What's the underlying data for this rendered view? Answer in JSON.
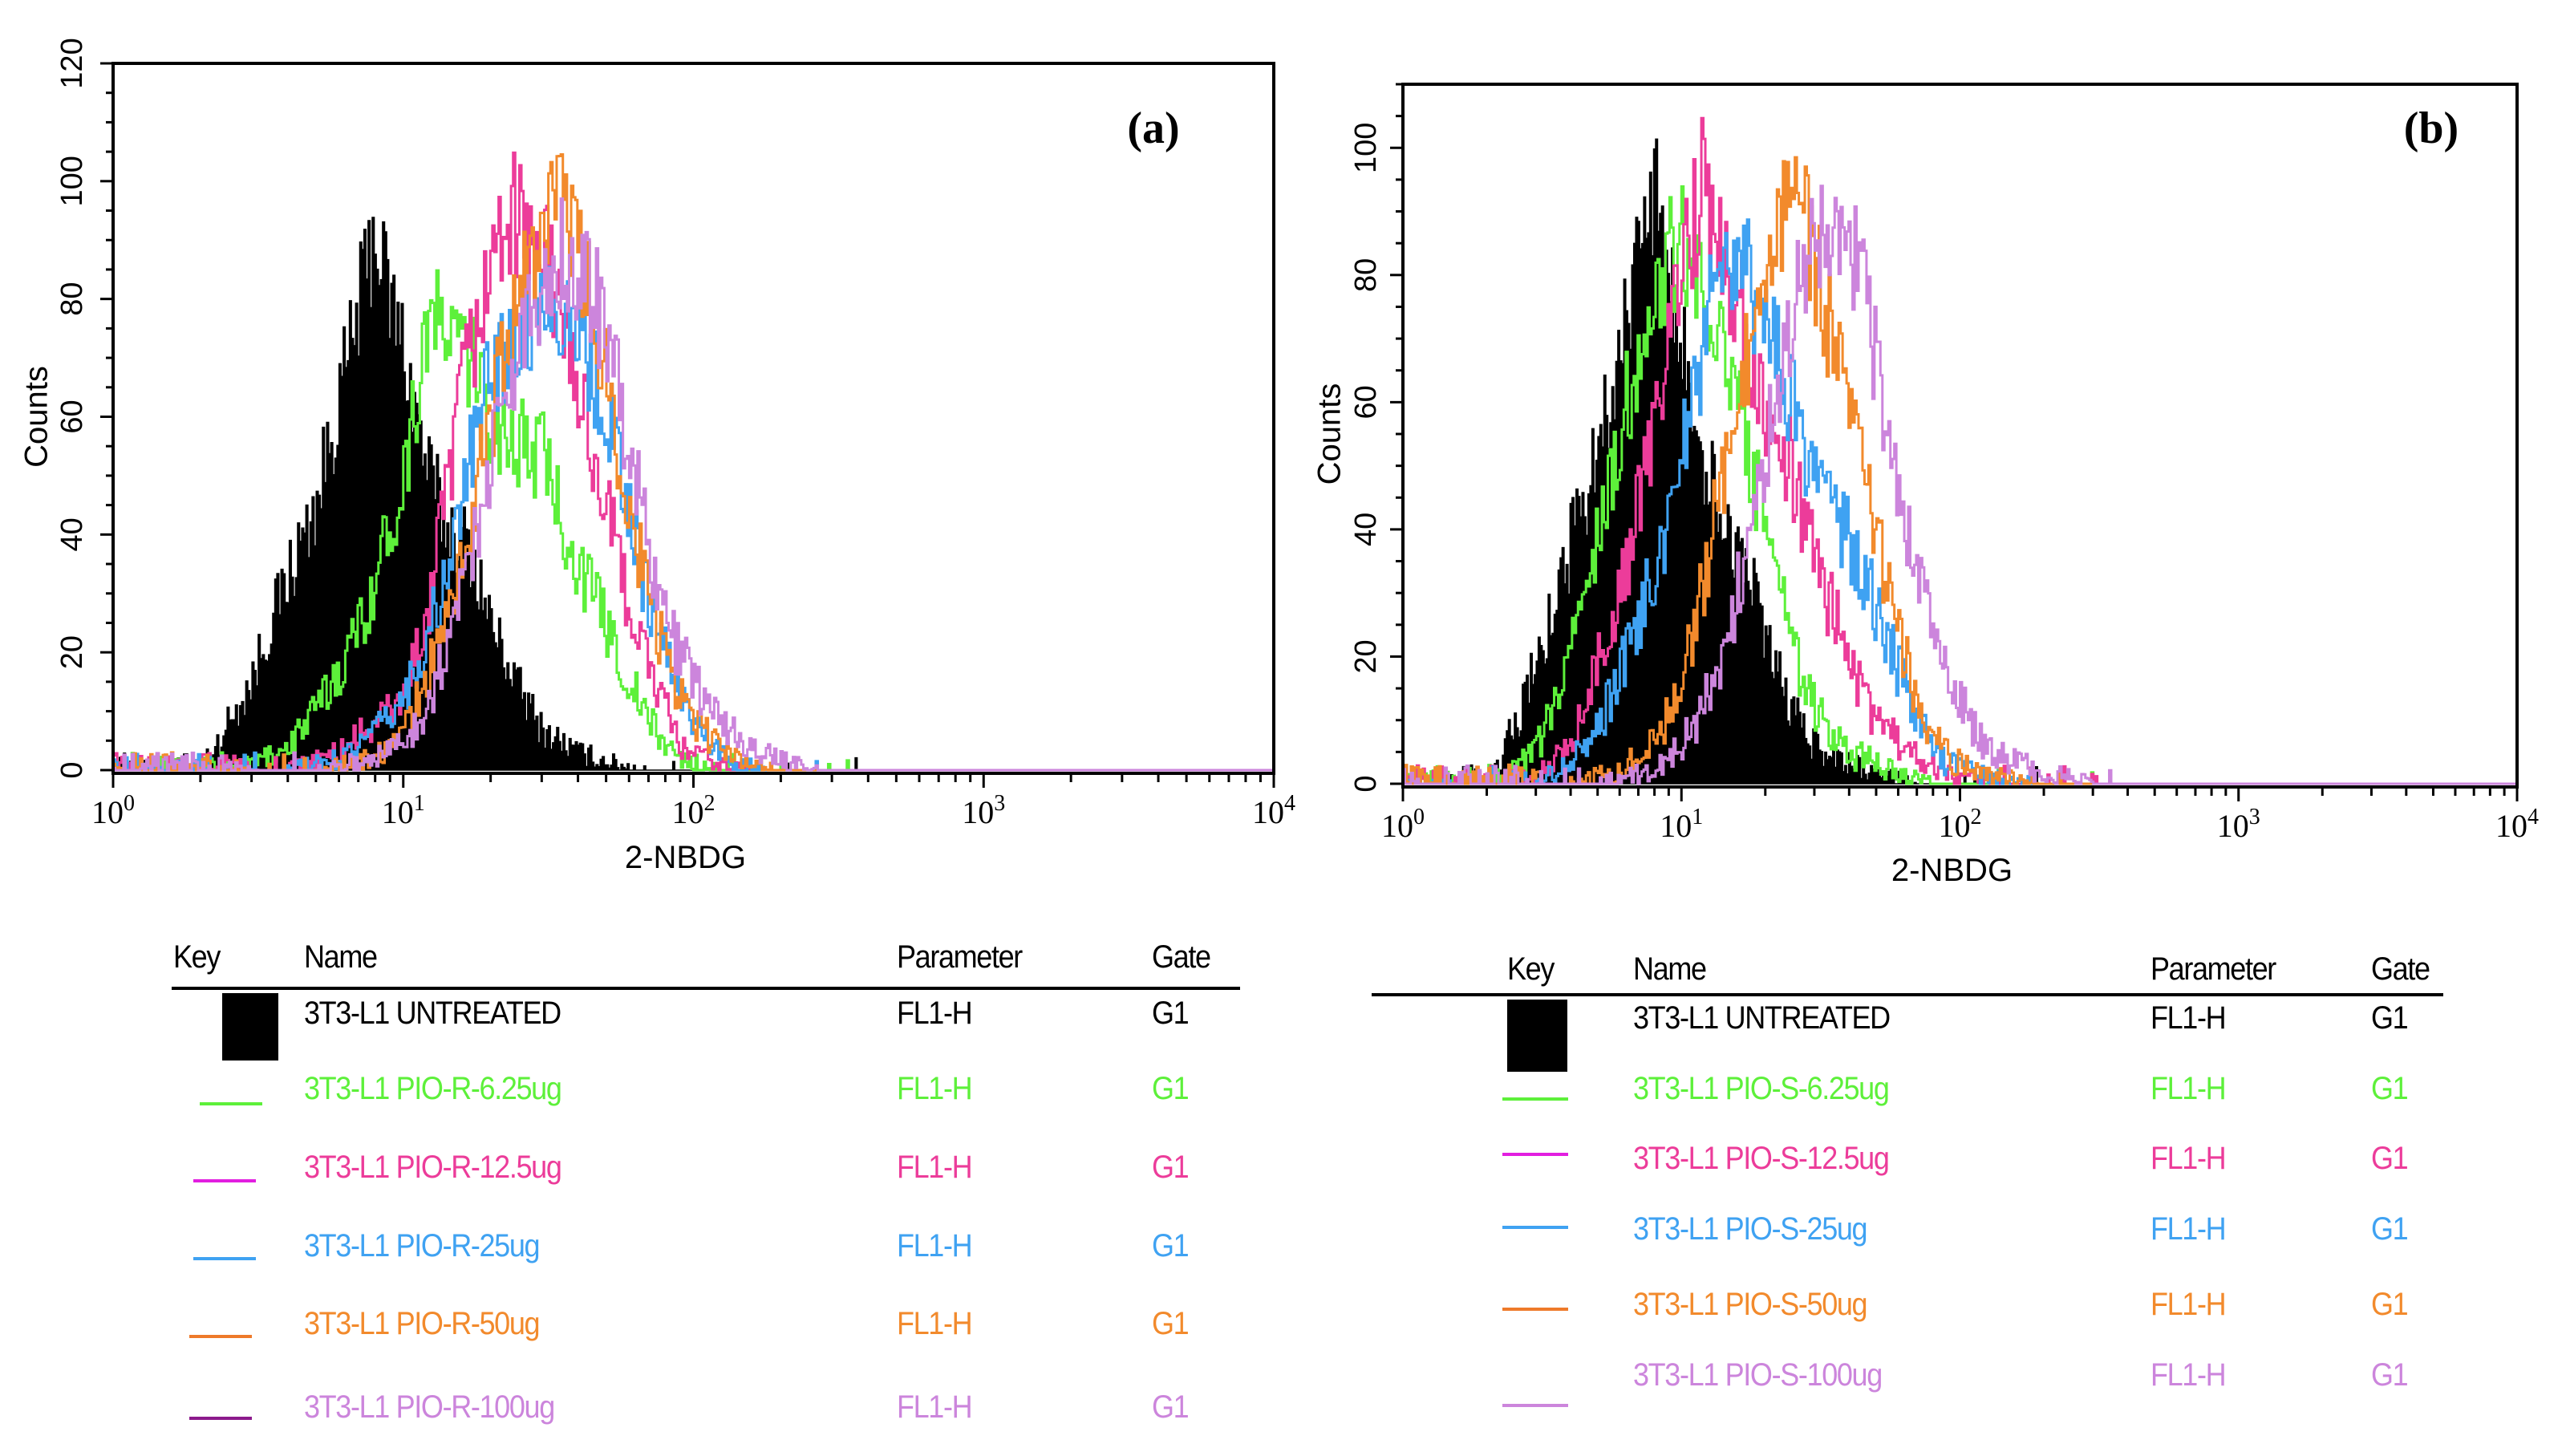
{
  "chart_data": [
    {
      "type": "line",
      "panel_label": "(a)",
      "xlabel": "2-NBDG",
      "ylabel": "Counts",
      "xscale": "log",
      "xlim": [
        1,
        10000
      ],
      "ylim": [
        0,
        120
      ],
      "yticks": [
        0,
        20,
        40,
        60,
        80,
        100,
        120
      ],
      "xticks": [
        {
          "base": "10",
          "exp": "0"
        },
        {
          "base": "10",
          "exp": "1"
        },
        {
          "base": "10",
          "exp": "2"
        },
        {
          "base": "10",
          "exp": "3"
        },
        {
          "base": "10",
          "exp": "4"
        }
      ],
      "legend": {
        "headers": {
          "key": "Key",
          "name": "Name",
          "parameter": "Parameter",
          "gate": "Gate"
        }
      },
      "series": [
        {
          "name": "3T3-L1 UNTREATED",
          "parameter": "FL1-H",
          "gate": "G1",
          "color": "#000000",
          "text_color": "#000000",
          "key": "#000000",
          "filled": true,
          "points": [
            [
              1.9,
              0
            ],
            [
              2.2,
              3
            ],
            [
              3,
              15
            ],
            [
              3.5,
              25
            ],
            [
              5,
              45
            ],
            [
              6.5,
              70
            ],
            [
              8,
              92
            ],
            [
              9,
              80
            ],
            [
              10,
              72
            ],
            [
              12,
              52
            ],
            [
              14,
              42
            ],
            [
              17,
              38
            ],
            [
              20,
              25
            ],
            [
              25,
              14
            ],
            [
              30,
              7
            ],
            [
              40,
              3
            ],
            [
              55,
              1
            ],
            [
              70,
              0
            ]
          ]
        },
        {
          "name": "3T3-L1 PIO-R-6.25ug",
          "parameter": "FL1-H",
          "gate": "G1",
          "color": "#5df03a",
          "text_color": "#5df03a",
          "key": "#5df03a",
          "points": [
            [
              2.5,
              0
            ],
            [
              3,
              1
            ],
            [
              4,
              4
            ],
            [
              5,
              10
            ],
            [
              6.5,
              20
            ],
            [
              8,
              32
            ],
            [
              10,
              50
            ],
            [
              11,
              62
            ],
            [
              12,
              76
            ],
            [
              14,
              75
            ],
            [
              17,
              70
            ],
            [
              20,
              60
            ],
            [
              25,
              55
            ],
            [
              30,
              54
            ],
            [
              40,
              35
            ],
            [
              50,
              25
            ],
            [
              60,
              15
            ],
            [
              75,
              6
            ],
            [
              90,
              2
            ],
            [
              120,
              0
            ]
          ]
        },
        {
          "name": "3T3-L1 PIO-R-12.5ug",
          "parameter": "FL1-H",
          "gate": "G1",
          "color": "#ec3c9a",
          "text_color": "#ec3c9a",
          "key": "#e21ee0",
          "points": [
            [
              4,
              0
            ],
            [
              6,
              3
            ],
            [
              8,
              8
            ],
            [
              10,
              12
            ],
            [
              12,
              25
            ],
            [
              14,
              45
            ],
            [
              16,
              65
            ],
            [
              20,
              85
            ],
            [
              23,
              95
            ],
            [
              27,
              92
            ],
            [
              32,
              85
            ],
            [
              40,
              65
            ],
            [
              50,
              45
            ],
            [
              60,
              28
            ],
            [
              75,
              14
            ],
            [
              90,
              4
            ],
            [
              120,
              1
            ],
            [
              160,
              0
            ]
          ]
        },
        {
          "name": "3T3-L1 PIO-R-25ug",
          "parameter": "FL1-H",
          "gate": "G1",
          "color": "#3fa2f2",
          "text_color": "#3fa2f2",
          "key": "#3fa2f2",
          "points": [
            [
              4,
              0
            ],
            [
              6,
              2
            ],
            [
              8,
              6
            ],
            [
              10,
              12
            ],
            [
              12,
              22
            ],
            [
              14,
              32
            ],
            [
              17,
              52
            ],
            [
              20,
              68
            ],
            [
              25,
              75
            ],
            [
              30,
              80
            ],
            [
              38,
              78
            ],
            [
              45,
              68
            ],
            [
              55,
              55
            ],
            [
              65,
              35
            ],
            [
              80,
              20
            ],
            [
              100,
              8
            ],
            [
              130,
              2
            ],
            [
              180,
              0
            ]
          ]
        },
        {
          "name": "3T3-L1 PIO-R-50ug",
          "parameter": "FL1-H",
          "gate": "G1",
          "color": "#f28a2c",
          "text_color": "#f28a2c",
          "key": "#ee7a2a",
          "points": [
            [
              5,
              0
            ],
            [
              8,
              2
            ],
            [
              10,
              6
            ],
            [
              12,
              15
            ],
            [
              15,
              30
            ],
            [
              18,
              48
            ],
            [
              22,
              70
            ],
            [
              28,
              88
            ],
            [
              34,
              98
            ],
            [
              40,
              88
            ],
            [
              48,
              72
            ],
            [
              60,
              45
            ],
            [
              70,
              30
            ],
            [
              85,
              15
            ],
            [
              100,
              8
            ],
            [
              130,
              3
            ],
            [
              180,
              0
            ]
          ]
        },
        {
          "name": "3T3-L1 PIO-R-100ug",
          "parameter": "FL1-H",
          "gate": "G1",
          "color": "#cc85dc",
          "text_color": "#cc85dc",
          "key": "#8c1a8c",
          "points": [
            [
              5,
              0
            ],
            [
              8,
              2
            ],
            [
              10,
              5
            ],
            [
              12,
              10
            ],
            [
              15,
              25
            ],
            [
              18,
              42
            ],
            [
              22,
              62
            ],
            [
              28,
              80
            ],
            [
              35,
              88
            ],
            [
              45,
              82
            ],
            [
              55,
              65
            ],
            [
              70,
              38
            ],
            [
              85,
              22
            ],
            [
              110,
              12
            ],
            [
              150,
              4
            ],
            [
              220,
              1
            ],
            [
              280,
              0
            ]
          ]
        }
      ]
    },
    {
      "type": "line",
      "panel_label": "(b)",
      "xlabel": "2-NBDG",
      "ylabel": "Counts",
      "xscale": "log",
      "xlim": [
        1,
        10000
      ],
      "ylim": [
        0,
        110
      ],
      "yticks": [
        0,
        20,
        40,
        60,
        80,
        100
      ],
      "xticks": [
        {
          "base": "10",
          "exp": "0"
        },
        {
          "base": "10",
          "exp": "1"
        },
        {
          "base": "10",
          "exp": "2"
        },
        {
          "base": "10",
          "exp": "3"
        },
        {
          "base": "10",
          "exp": "4"
        }
      ],
      "legend": {
        "headers": {
          "key": "Key",
          "name": "Name",
          "parameter": "Parameter",
          "gate": "Gate"
        }
      },
      "series": [
        {
          "name": "3T3-L1 UNTREATED",
          "parameter": "FL1-H",
          "gate": "G1",
          "color": "#000000",
          "text_color": "#000000",
          "key": "#000000",
          "filled": true,
          "points": [
            [
              1.9,
              0
            ],
            [
              2.2,
              3
            ],
            [
              2.7,
              12
            ],
            [
              3.2,
              22
            ],
            [
              4.5,
              45
            ],
            [
              6,
              68
            ],
            [
              7.5,
              88
            ],
            [
              8,
              95
            ],
            [
              9,
              78
            ],
            [
              10,
              70
            ],
            [
              12,
              52
            ],
            [
              14,
              42
            ],
            [
              17,
              35
            ],
            [
              20,
              22
            ],
            [
              25,
              12
            ],
            [
              30,
              6
            ],
            [
              40,
              3
            ],
            [
              55,
              1
            ],
            [
              70,
              0
            ]
          ]
        },
        {
          "name": "3T3-L1 PIO-S-6.25ug",
          "parameter": "FL1-H",
          "gate": "G1",
          "color": "#5df03a",
          "text_color": "#5df03a",
          "key": "#5df03a",
          "points": [
            [
              2.2,
              0
            ],
            [
              3,
              5
            ],
            [
              3.5,
              12
            ],
            [
              4.5,
              30
            ],
            [
              6,
              55
            ],
            [
              7.5,
              72
            ],
            [
              9,
              82
            ],
            [
              10,
              85
            ],
            [
              12,
              78
            ],
            [
              14,
              70
            ],
            [
              17,
              55
            ],
            [
              20,
              40
            ],
            [
              25,
              22
            ],
            [
              30,
              12
            ],
            [
              40,
              5
            ],
            [
              60,
              2
            ],
            [
              80,
              0
            ]
          ]
        },
        {
          "name": "3T3-L1 PIO-S-12.5ug",
          "parameter": "FL1-H",
          "gate": "G1",
          "color": "#ec3c9a",
          "text_color": "#ec3c9a",
          "key": "#e21ee0",
          "points": [
            [
              2.8,
              0
            ],
            [
              3.5,
              3
            ],
            [
              4.5,
              12
            ],
            [
              6,
              30
            ],
            [
              8,
              55
            ],
            [
              10,
              80
            ],
            [
              12,
              95
            ],
            [
              14,
              85
            ],
            [
              17,
              72
            ],
            [
              20,
              60
            ],
            [
              25,
              50
            ],
            [
              30,
              35
            ],
            [
              40,
              20
            ],
            [
              50,
              10
            ],
            [
              70,
              4
            ],
            [
              100,
              1
            ],
            [
              130,
              0
            ]
          ]
        },
        {
          "name": "3T3-L1 PIO-S-25ug",
          "parameter": "FL1-H",
          "gate": "G1",
          "color": "#3fa2f2",
          "text_color": "#3fa2f2",
          "key": "#3fa2f2",
          "points": [
            [
              3,
              0
            ],
            [
              4,
              3
            ],
            [
              5,
              8
            ],
            [
              7,
              25
            ],
            [
              9,
              42
            ],
            [
              11,
              62
            ],
            [
              14,
              82
            ],
            [
              16,
              85
            ],
            [
              20,
              72
            ],
            [
              25,
              60
            ],
            [
              30,
              48
            ],
            [
              40,
              38
            ],
            [
              50,
              28
            ],
            [
              60,
              18
            ],
            [
              75,
              8
            ],
            [
              90,
              3
            ],
            [
              130,
              1
            ],
            [
              180,
              0
            ]
          ]
        },
        {
          "name": "3T3-L1 PIO-S-50ug",
          "parameter": "FL1-H",
          "gate": "G1",
          "color": "#f28a2c",
          "text_color": "#f28a2c",
          "key": "#ee7a2a",
          "points": [
            [
              4,
              0
            ],
            [
              6,
              2
            ],
            [
              8,
              6
            ],
            [
              10,
              15
            ],
            [
              12,
              32
            ],
            [
              14,
              48
            ],
            [
              17,
              65
            ],
            [
              20,
              80
            ],
            [
              25,
              95
            ],
            [
              30,
              82
            ],
            [
              35,
              70
            ],
            [
              40,
              58
            ],
            [
              50,
              40
            ],
            [
              60,
              25
            ],
            [
              75,
              8
            ],
            [
              100,
              3
            ],
            [
              140,
              1
            ],
            [
              190,
              0
            ]
          ]
        },
        {
          "name": "3T3-L1 PIO-S-100ug",
          "parameter": "FL1-H",
          "gate": "G1",
          "color": "#cc85dc",
          "text_color": "#cc85dc",
          "key": "#cc85dc",
          "points": [
            [
              5,
              0
            ],
            [
              8,
              2
            ],
            [
              10,
              6
            ],
            [
              12,
              12
            ],
            [
              15,
              25
            ],
            [
              18,
              42
            ],
            [
              22,
              62
            ],
            [
              27,
              80
            ],
            [
              32,
              88
            ],
            [
              40,
              85
            ],
            [
              50,
              68
            ],
            [
              60,
              45
            ],
            [
              75,
              28
            ],
            [
              95,
              15
            ],
            [
              120,
              7
            ],
            [
              160,
              3
            ],
            [
              240,
              1
            ],
            [
              300,
              0
            ]
          ]
        }
      ]
    }
  ]
}
